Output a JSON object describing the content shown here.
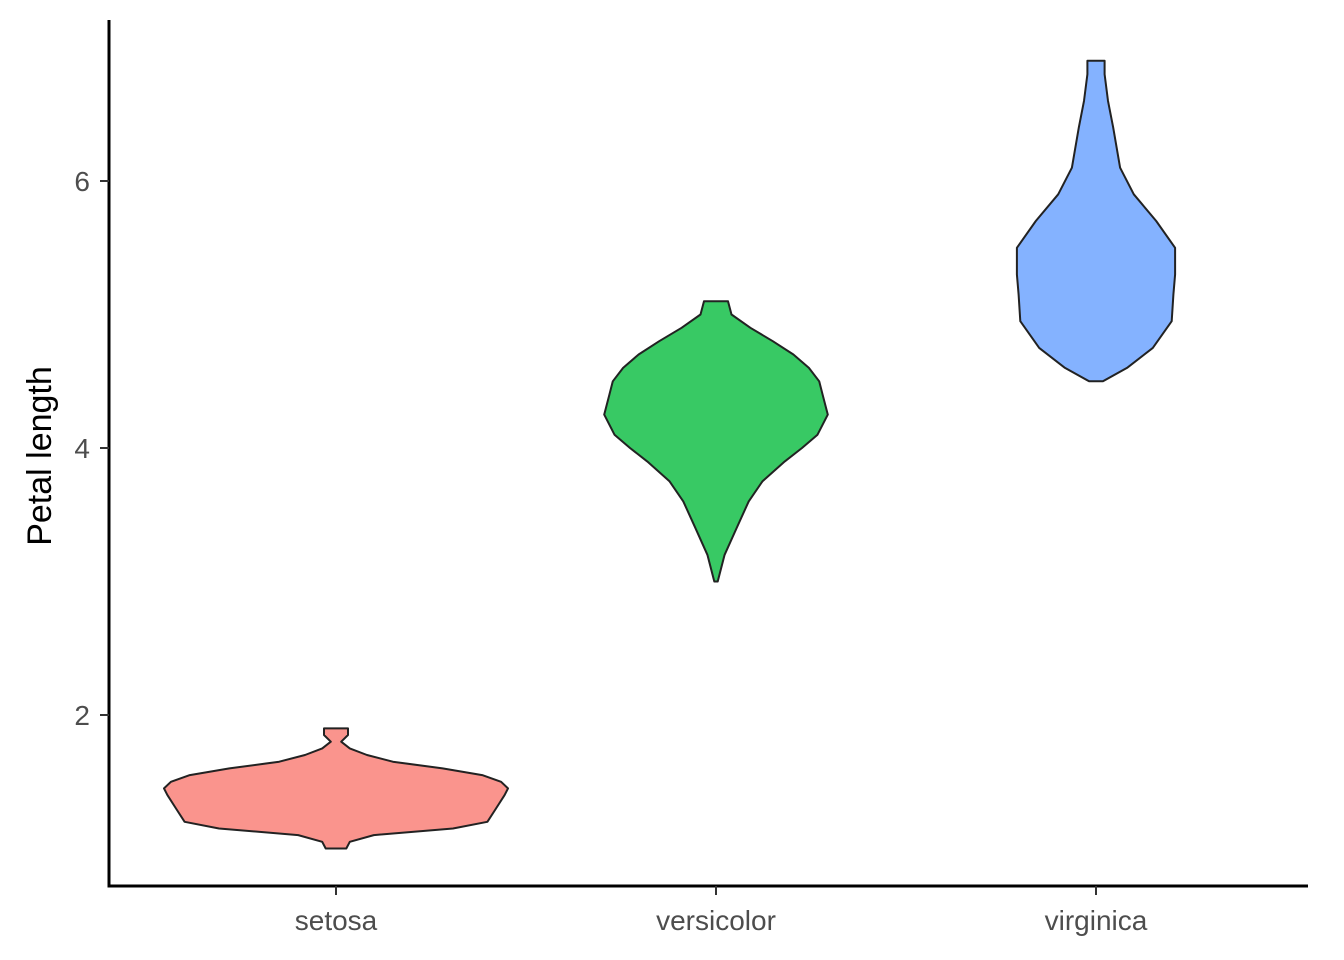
{
  "chart_data": {
    "type": "violin",
    "title": "",
    "xlabel": "",
    "ylabel": "Petal length",
    "categories": [
      "setosa",
      "versicolor",
      "virginica"
    ],
    "ylim": [
      0.75,
      7.3
    ],
    "y_ticks": [
      2,
      4,
      6
    ],
    "grid": false,
    "legend": "none",
    "series": [
      {
        "category": "setosa",
        "color": "#F8766D",
        "min": 1.0,
        "max": 1.9,
        "density_profile": [
          [
            1.0,
            0.06
          ],
          [
            1.05,
            0.08
          ],
          [
            1.1,
            0.22
          ],
          [
            1.15,
            0.68
          ],
          [
            1.2,
            0.88
          ],
          [
            1.3,
            0.93
          ],
          [
            1.4,
            0.98
          ],
          [
            1.45,
            1.0
          ],
          [
            1.5,
            0.96
          ],
          [
            1.55,
            0.85
          ],
          [
            1.6,
            0.62
          ],
          [
            1.65,
            0.33
          ],
          [
            1.7,
            0.18
          ],
          [
            1.75,
            0.08
          ],
          [
            1.8,
            0.03
          ],
          [
            1.85,
            0.07
          ],
          [
            1.9,
            0.07
          ]
        ]
      },
      {
        "category": "versicolor",
        "color": "#00BA38",
        "min": 3.0,
        "max": 5.1,
        "density_profile": [
          [
            3.0,
            0.01
          ],
          [
            3.2,
            0.05
          ],
          [
            3.4,
            0.12
          ],
          [
            3.6,
            0.19
          ],
          [
            3.75,
            0.27
          ],
          [
            3.9,
            0.4
          ],
          [
            4.0,
            0.5
          ],
          [
            4.1,
            0.59
          ],
          [
            4.25,
            0.65
          ],
          [
            4.4,
            0.62
          ],
          [
            4.5,
            0.6
          ],
          [
            4.6,
            0.54
          ],
          [
            4.7,
            0.45
          ],
          [
            4.8,
            0.33
          ],
          [
            4.9,
            0.2
          ],
          [
            5.0,
            0.09
          ],
          [
            5.1,
            0.07
          ]
        ]
      },
      {
        "category": "virginica",
        "color": "#619CFF",
        "min": 4.5,
        "max": 6.9,
        "density_profile": [
          [
            4.5,
            0.04
          ],
          [
            4.6,
            0.18
          ],
          [
            4.75,
            0.33
          ],
          [
            4.95,
            0.44
          ],
          [
            5.15,
            0.45
          ],
          [
            5.3,
            0.46
          ],
          [
            5.5,
            0.46
          ],
          [
            5.7,
            0.35
          ],
          [
            5.9,
            0.22
          ],
          [
            6.1,
            0.14
          ],
          [
            6.4,
            0.1
          ],
          [
            6.6,
            0.07
          ],
          [
            6.8,
            0.05
          ],
          [
            6.9,
            0.05
          ]
        ]
      }
    ]
  }
}
